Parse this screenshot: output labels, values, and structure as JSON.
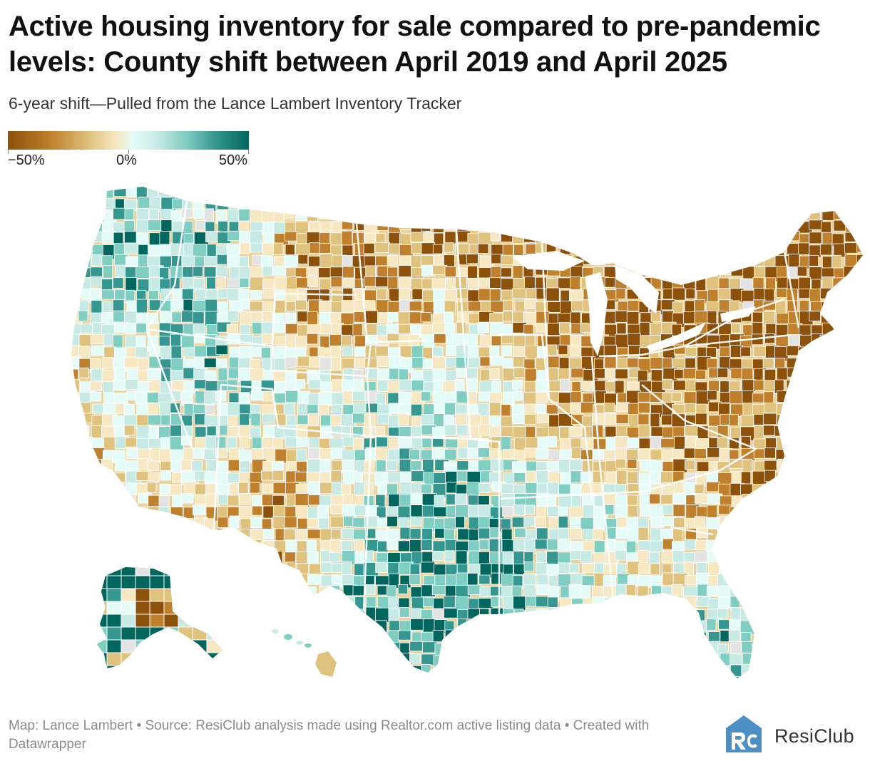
{
  "title": "Active housing inventory for sale compared to pre-pandemic levels: County shift between April 2019 and April 2025",
  "subtitle": "6-year shift—Pulled from the Lance Lambert Inventory Tracker",
  "legend": {
    "labels": [
      "−50%",
      "0%",
      "50%"
    ],
    "stops": [
      -50,
      0,
      50
    ],
    "colors": [
      "#8c510a",
      "#bf812d",
      "#dfc27d",
      "#f6e8c3",
      "#e4fbf7",
      "#c7eae5",
      "#80cdc1",
      "#35978f",
      "#01665e"
    ]
  },
  "footer": "Map: Lance Lambert • Source: ResiClub analysis made using Realtor.com active listing data • Created with Datawrapper",
  "brand": {
    "name": "ResiClub",
    "logo_letters": "RC",
    "logo_color": "#4b8fc5"
  },
  "colors": {
    "no_data": "#e3e3e3",
    "border": "#ffffff"
  }
}
